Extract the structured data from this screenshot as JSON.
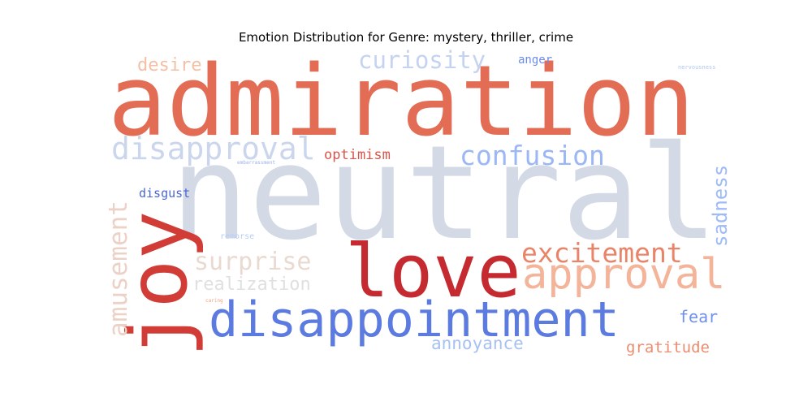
{
  "chart_data": {
    "type": "wordcloud",
    "title": "Emotion Distribution for Genre: mystery, thriller, crime",
    "words": [
      {
        "text": "neutral",
        "color": "#d3dae6"
      },
      {
        "text": "admiration",
        "color": "#e36c55"
      },
      {
        "text": "love",
        "color": "#c52a30"
      },
      {
        "text": "joy",
        "color": "#d13c36"
      },
      {
        "text": "disappointment",
        "color": "#5b7be0"
      },
      {
        "text": "approval",
        "color": "#f4b49a"
      },
      {
        "text": "excitement",
        "color": "#ea8468"
      },
      {
        "text": "disapproval",
        "color": "#cbd6ed"
      },
      {
        "text": "confusion",
        "color": "#9cb7f5"
      },
      {
        "text": "amusement",
        "color": "#ecd1c6"
      },
      {
        "text": "curiosity",
        "color": "#c4d3f1"
      },
      {
        "text": "surprise",
        "color": "#ead9d1"
      },
      {
        "text": "realization",
        "color": "#e1e0e0"
      },
      {
        "text": "sadness",
        "color": "#9fbbf7"
      },
      {
        "text": "desire",
        "color": "#f4c0a5"
      },
      {
        "text": "annoyance",
        "color": "#a7c1f2"
      },
      {
        "text": "gratitude",
        "color": "#ec8d6f"
      },
      {
        "text": "fear",
        "color": "#6f91ec"
      },
      {
        "text": "optimism",
        "color": "#d8554b"
      },
      {
        "text": "disgust",
        "color": "#4a67d0"
      },
      {
        "text": "anger",
        "color": "#6c8bea"
      },
      {
        "text": "remorse",
        "color": "#b8cdf4"
      },
      {
        "text": "nervousness",
        "color": "#b1c6f5"
      },
      {
        "text": "embarrassment",
        "color": "#9cb0e6"
      },
      {
        "text": "caring",
        "color": "#f3a384"
      }
    ]
  }
}
